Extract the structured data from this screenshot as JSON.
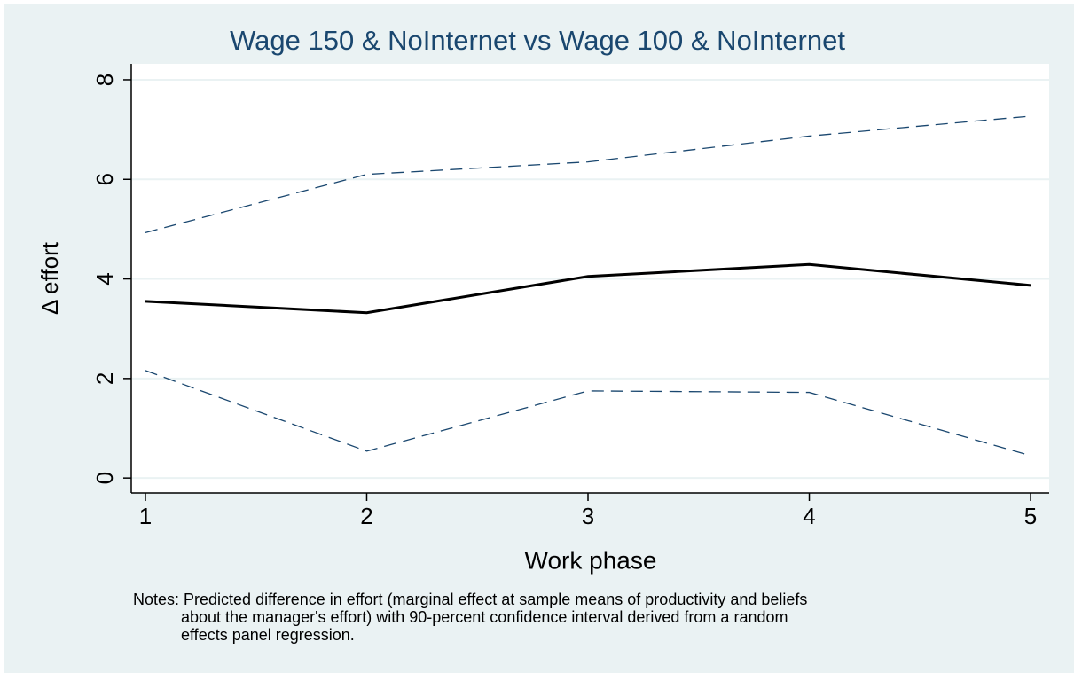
{
  "chart_data": {
    "type": "line",
    "title": "Wage 150 & NoInternet vs Wage 100 & NoInternet",
    "x_label": "Work phase",
    "y_label": "Δ effort",
    "notes": [
      "Notes: Predicted difference in effort (marginal effect at sample means of productivity and beliefs",
      "about the manager's effort) with 90-percent confidence interval derived from a random",
      "effects panel regression."
    ],
    "x": [
      1,
      2,
      3,
      4,
      5
    ],
    "series": [
      {
        "color": "#000000",
        "dash": "solid",
        "values": [
          3.55,
          3.32,
          4.05,
          4.29,
          3.87
        ]
      },
      {
        "color": "#1a476f",
        "dash": "dashed",
        "values": [
          4.93,
          6.1,
          6.35,
          6.87,
          7.27
        ]
      },
      {
        "color": "#1a476f",
        "dash": "dashed",
        "values": [
          2.16,
          0.54,
          1.75,
          1.72,
          0.45
        ]
      }
    ],
    "xlim": [
      0.936,
      5.084
    ],
    "ylim": [
      -0.3,
      8.32
    ],
    "xticks": [
      1,
      2,
      3,
      4,
      5
    ],
    "yticks": [
      0,
      2,
      4,
      6,
      8
    ],
    "grid": true
  }
}
